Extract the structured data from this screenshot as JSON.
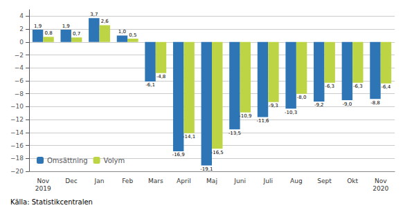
{
  "chart_data": {
    "type": "bar",
    "categories": [
      "Nov\n2019",
      "Dec",
      "Jan",
      "Feb",
      "Mars",
      "April",
      "Maj",
      "Juni",
      "Juli",
      "Aug",
      "Sept",
      "Okt",
      "Nov\n2020"
    ],
    "series": [
      {
        "name": "Omsättning",
        "color": "#2E75B6",
        "values": [
          1.9,
          1.9,
          3.7,
          1.0,
          -6.1,
          -16.9,
          -19.1,
          -13.5,
          -11.6,
          -10.3,
          -9.2,
          -9.0,
          -8.8
        ],
        "value_labels": [
          "1,9",
          "1,9",
          "3,7",
          "1,0",
          "-6,1",
          "-16,9",
          "-19,1",
          "-13,5",
          "-11,6",
          "-10,3",
          "-9,2",
          "-9,0",
          "-8,8"
        ]
      },
      {
        "name": "Volym",
        "color": "#BDD544",
        "values": [
          0.8,
          0.7,
          2.6,
          0.5,
          -4.8,
          -14.1,
          -16.5,
          -10.9,
          -9.3,
          -8.0,
          -6.3,
          -6.3,
          -6.4
        ],
        "value_labels": [
          "0,8",
          "0,7",
          "2,6",
          "0,5",
          "-4,8",
          "-14,1",
          "-16,5",
          "-10,9",
          "-9,3",
          "-8,0",
          "-6,3",
          "-6,3",
          "-6,4"
        ]
      }
    ],
    "ylim": [
      -20,
      5
    ],
    "yticks": [
      {
        "value": -20,
        "label": "−20"
      },
      {
        "value": -18,
        "label": "−18"
      },
      {
        "value": -16,
        "label": "−16"
      },
      {
        "value": -14,
        "label": "−14"
      },
      {
        "value": -12,
        "label": "−12"
      },
      {
        "value": -10,
        "label": "−10"
      },
      {
        "value": -8,
        "label": "−8"
      },
      {
        "value": -6,
        "label": "−6"
      },
      {
        "value": -4,
        "label": "−4"
      },
      {
        "value": -2,
        "label": "−2"
      },
      0,
      2,
      4
    ],
    "grid": true,
    "legend": "lower left",
    "data_labels": true,
    "source": "Källa: Statistikcentralen"
  }
}
